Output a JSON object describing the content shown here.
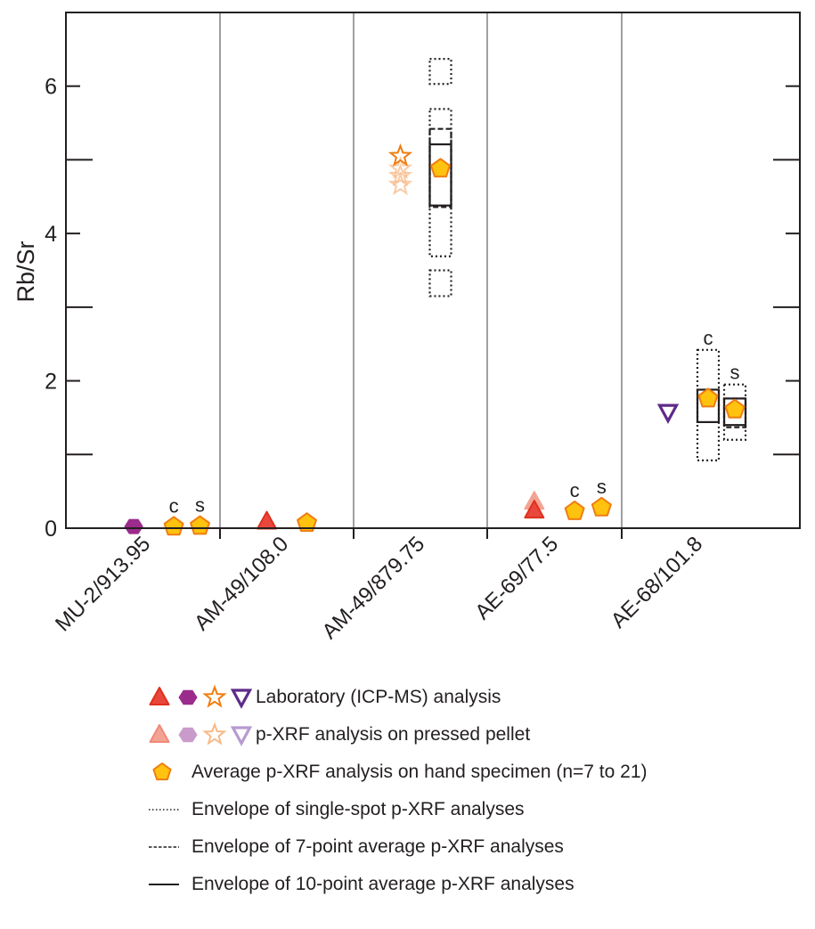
{
  "chart_data": {
    "type": "scatter",
    "title": "",
    "xlabel": "",
    "ylabel": "Rb/Sr",
    "ylim": [
      0,
      7
    ],
    "yticks_major": [
      0,
      2,
      4,
      6
    ],
    "yticks_minor": [
      1,
      3,
      5
    ],
    "grid": false,
    "categories": [
      "MU-2/913.95",
      "AM-49/108.0",
      "AM-49/879.75",
      "AE-69/77.5",
      "AE-68/101.8"
    ],
    "colors": {
      "lab_triangle": "#e8473b",
      "lab_hexagon": "#9b2b8c",
      "lab_star": "#f07d10",
      "lab_inv_triangle": "#5e2b8a",
      "pellet_triangle": "#f29a88",
      "pellet_hexagon": "#c99bcb",
      "pellet_star": "#f8b987",
      "pellet_inv_triangle": "#b79bd0",
      "avg_pentagon_fill": "#ffc20e",
      "avg_pentagon_stroke": "#f07d10",
      "envelope": "#231f20",
      "separator": "#a0a0a0"
    },
    "points": [
      {
        "category": "MU-2/913.95",
        "series": "pellet",
        "marker": "hexagon",
        "value": 0.03,
        "slot": 0.44
      },
      {
        "category": "MU-2/913.95",
        "series": "lab",
        "marker": "hexagon",
        "value": 0.02,
        "slot": 0.44
      },
      {
        "category": "MU-2/913.95",
        "series": "avg",
        "marker": "pentagon",
        "value": 0.02,
        "slot": 0.7,
        "label": "c"
      },
      {
        "category": "MU-2/913.95",
        "series": "avg",
        "marker": "pentagon",
        "value": 0.03,
        "slot": 0.87,
        "label": "s"
      },
      {
        "category": "AM-49/108.0",
        "series": "lab",
        "marker": "triangle",
        "value": 0.09,
        "slot": 0.35
      },
      {
        "category": "AM-49/108.0",
        "series": "avg",
        "marker": "pentagon",
        "value": 0.07,
        "slot": 0.65
      },
      {
        "category": "AM-49/879.75",
        "series": "pellet",
        "marker": "star",
        "value": 4.66,
        "slot": 0.35
      },
      {
        "category": "AM-49/879.75",
        "series": "pellet",
        "marker": "star",
        "value": 4.78,
        "slot": 0.35
      },
      {
        "category": "AM-49/879.75",
        "series": "pellet",
        "marker": "star",
        "value": 4.88,
        "slot": 0.35
      },
      {
        "category": "AM-49/879.75",
        "series": "lab",
        "marker": "star",
        "value": 5.05,
        "slot": 0.35
      },
      {
        "category": "AM-49/879.75",
        "series": "avg",
        "marker": "pentagon",
        "value": 4.88,
        "slot": 0.65
      },
      {
        "category": "AE-69/77.5",
        "series": "pellet",
        "marker": "triangle",
        "value": 0.36,
        "slot": 0.35
      },
      {
        "category": "AE-69/77.5",
        "series": "lab",
        "marker": "triangle",
        "value": 0.24,
        "slot": 0.35
      },
      {
        "category": "AE-69/77.5",
        "series": "avg",
        "marker": "pentagon",
        "value": 0.23,
        "slot": 0.65,
        "label": "c"
      },
      {
        "category": "AE-69/77.5",
        "series": "avg",
        "marker": "pentagon",
        "value": 0.28,
        "slot": 0.85,
        "label": "s"
      },
      {
        "category": "AE-68/101.8",
        "series": "lab",
        "marker": "inv_triangle",
        "value": 1.57,
        "slot": 0.26
      },
      {
        "category": "AE-68/101.8",
        "series": "avg",
        "marker": "pentagon",
        "value": 1.76,
        "slot": 0.485,
        "label": "c"
      },
      {
        "category": "AE-68/101.8",
        "series": "avg",
        "marker": "pentagon",
        "value": 1.61,
        "slot": 0.635,
        "label": "s"
      }
    ],
    "envelopes": [
      {
        "category": "AM-49/879.75",
        "style": "dotted",
        "low": 6.03,
        "high": 6.37,
        "slot": 0.65
      },
      {
        "category": "AM-49/879.75",
        "style": "dotted",
        "low": 3.69,
        "high": 5.69,
        "slot": 0.65
      },
      {
        "category": "AM-49/879.75",
        "style": "dotted",
        "low": 3.15,
        "high": 3.5,
        "slot": 0.65
      },
      {
        "category": "AM-49/879.75",
        "style": "dashed",
        "low": 4.36,
        "high": 5.42,
        "slot": 0.65
      },
      {
        "category": "AM-49/879.75",
        "style": "solid",
        "low": 4.38,
        "high": 5.21,
        "slot": 0.65
      },
      {
        "category": "AE-68/101.8",
        "style": "dotted",
        "low": 0.92,
        "high": 2.42,
        "slot": 0.485,
        "label": "c"
      },
      {
        "category": "AE-68/101.8",
        "style": "solid",
        "low": 1.44,
        "high": 1.88,
        "slot": 0.485
      },
      {
        "category": "AE-68/101.8",
        "style": "dotted",
        "low": 1.2,
        "high": 1.95,
        "slot": 0.635,
        "label": "s"
      },
      {
        "category": "AE-68/101.8",
        "style": "dashed",
        "low": 1.37,
        "high": 1.76,
        "slot": 0.635
      },
      {
        "category": "AE-68/101.8",
        "style": "solid",
        "low": 1.4,
        "high": 1.76,
        "slot": 0.635
      }
    ],
    "legend": {
      "placement": "bottom",
      "entries": [
        {
          "symbols": [
            "triangle-lab",
            "hexagon-lab",
            "star-lab",
            "inv-triangle-lab"
          ],
          "label": "Laboratory (ICP-MS) analysis"
        },
        {
          "symbols": [
            "triangle-pellet",
            "hexagon-pellet",
            "star-pellet",
            "inv-triangle-pellet"
          ],
          "label": "p-XRF analysis on pressed pellet"
        },
        {
          "symbols": [
            "pentagon-avg"
          ],
          "label": "Average p-XRF analysis on hand specimen (n=7 to 21)"
        },
        {
          "symbols": [
            "line-dotted"
          ],
          "label": "Envelope of single-spot p-XRF analyses"
        },
        {
          "symbols": [
            "line-dashed"
          ],
          "label": "Envelope of 7-point average p-XRF analyses"
        },
        {
          "symbols": [
            "line-solid"
          ],
          "label": "Envelope of 10-point average p-XRF analyses"
        }
      ]
    }
  }
}
